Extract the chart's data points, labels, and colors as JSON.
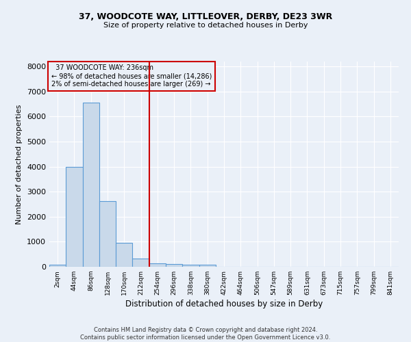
{
  "title1": "37, WOODCOTE WAY, LITTLEOVER, DERBY, DE23 3WR",
  "title2": "Size of property relative to detached houses in Derby",
  "xlabel": "Distribution of detached houses by size in Derby",
  "ylabel": "Number of detached properties",
  "footnote1": "Contains HM Land Registry data © Crown copyright and database right 2024.",
  "footnote2": "Contains public sector information licensed under the Open Government Licence v3.0.",
  "annotation_line1": "  37 WOODCOTE WAY: 236sqm  ",
  "annotation_line2": "← 98% of detached houses are smaller (14,286)",
  "annotation_line3": "2% of semi-detached houses are larger (269) →",
  "bar_color": "#c9d9ea",
  "bar_edge_color": "#5b9bd5",
  "ref_line_color": "#cc0000",
  "categories": [
    "2sqm",
    "44sqm",
    "86sqm",
    "128sqm",
    "170sqm",
    "212sqm",
    "254sqm",
    "296sqm",
    "338sqm",
    "380sqm",
    "422sqm",
    "464sqm",
    "506sqm",
    "547sqm",
    "589sqm",
    "631sqm",
    "673sqm",
    "715sqm",
    "757sqm",
    "799sqm",
    "841sqm"
  ],
  "values": [
    80,
    3980,
    6550,
    2620,
    960,
    320,
    130,
    115,
    95,
    75,
    0,
    0,
    0,
    0,
    0,
    0,
    0,
    0,
    0,
    0,
    0
  ],
  "ylim": [
    0,
    8200
  ],
  "yticks": [
    0,
    1000,
    2000,
    3000,
    4000,
    5000,
    6000,
    7000,
    8000
  ],
  "bg_color": "#eaf0f8",
  "grid_color": "#ffffff",
  "annotation_box_color": "#cc0000"
}
